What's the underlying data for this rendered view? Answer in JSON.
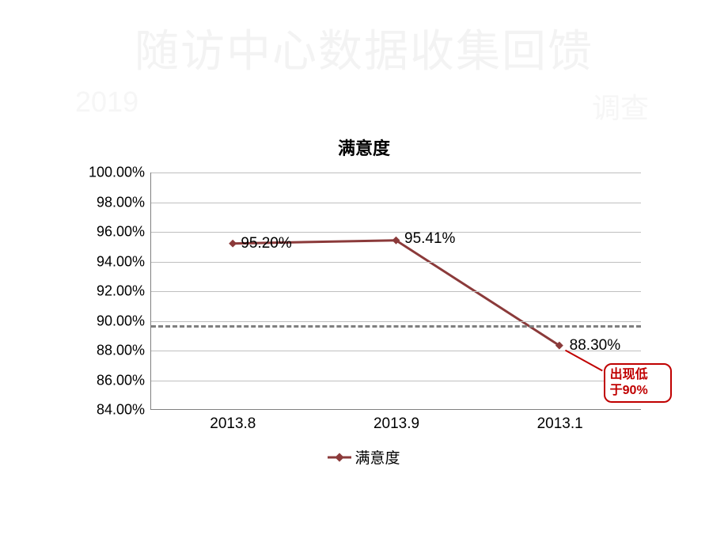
{
  "titles": {
    "main": "随访中心数据收集回馈",
    "sub_left": "2019",
    "sub_right": "调查"
  },
  "chart": {
    "type": "line",
    "title": "满意度",
    "title_fontsize": 22,
    "series_name": "满意度",
    "series_color": "#8b3a3a",
    "marker_style": "diamond",
    "marker_size": 10,
    "line_width": 3,
    "background_color": "#ffffff",
    "axis_color": "#808080",
    "grid_color": "#bfbfbf",
    "label_fontsize": 18,
    "tick_fontsize": 19,
    "ylim": [
      84.0,
      100.0
    ],
    "ytick_step": 2.0,
    "y_ticks": [
      "84.00%",
      "86.00%",
      "88.00%",
      "90.00%",
      "92.00%",
      "94.00%",
      "96.00%",
      "98.00%",
      "100.00%"
    ],
    "x_categories": [
      "2013.8",
      "2013.9",
      "2013.1"
    ],
    "values": [
      95.2,
      95.41,
      88.3
    ],
    "value_labels": [
      "95.20%",
      "95.41%",
      "88.30%"
    ],
    "reference_line": {
      "value": 89.7,
      "color": "#7f7f7f",
      "dash": true,
      "width": 3
    },
    "callout": {
      "text_line1": "出现低",
      "text_line2": "于90%",
      "border_color": "#c00000",
      "text_color": "#c00000",
      "bg_color": "#ffffff"
    },
    "legend_position": "bottom"
  }
}
